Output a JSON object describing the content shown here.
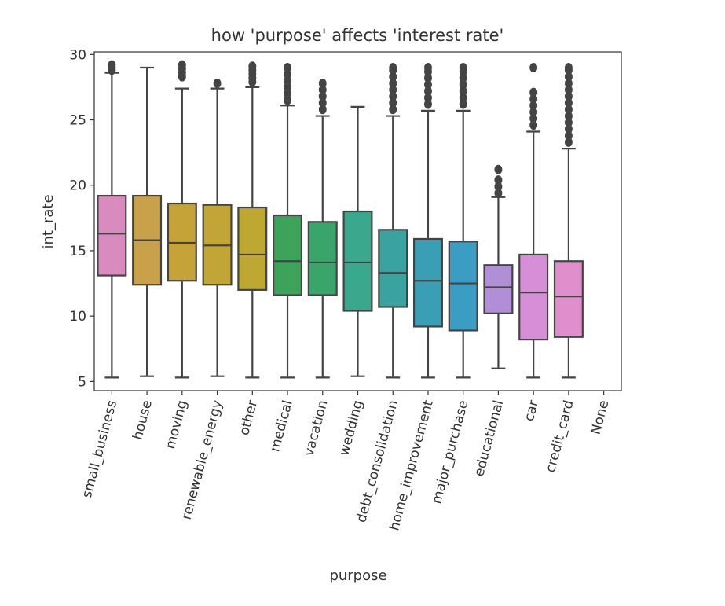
{
  "chart_data": {
    "type": "box",
    "title": "how 'purpose' affects 'interest rate'",
    "xlabel": "purpose",
    "ylabel": "int_rate",
    "ylim": [
      4.3,
      30.2
    ],
    "yticks": [
      5,
      10,
      15,
      20,
      25,
      30
    ],
    "grid": false,
    "legend": "none",
    "categories": [
      "small_business",
      "house",
      "moving",
      "renewable_energy",
      "other",
      "medical",
      "vacation",
      "wedding",
      "debt_consolidation",
      "home_improvement",
      "major_purchase",
      "educational",
      "car",
      "credit_card",
      "None"
    ],
    "boxes": [
      {
        "category": "small_business",
        "whisker_low": 5.3,
        "q1": 13.1,
        "median": 16.3,
        "q3": 19.2,
        "whisker_high": 28.6,
        "outliers": [
          28.8,
          29.0,
          29.2
        ],
        "color": "#d98bc0"
      },
      {
        "category": "house",
        "whisker_low": 5.4,
        "q1": 12.4,
        "median": 15.8,
        "q3": 19.2,
        "whisker_high": 29.0,
        "outliers": [],
        "color": "#c9a14a"
      },
      {
        "category": "moving",
        "whisker_low": 5.3,
        "q1": 12.7,
        "median": 15.6,
        "q3": 18.6,
        "whisker_high": 27.4,
        "outliers": [
          28.3,
          28.6,
          28.9,
          29.2
        ],
        "color": "#c6a339"
      },
      {
        "category": "renewable_energy",
        "whisker_low": 5.4,
        "q1": 12.4,
        "median": 15.4,
        "q3": 18.5,
        "whisker_high": 27.4,
        "outliers": [
          27.8
        ],
        "color": "#c2a537"
      },
      {
        "category": "other",
        "whisker_low": 5.3,
        "q1": 12.0,
        "median": 14.7,
        "q3": 18.3,
        "whisker_high": 27.5,
        "outliers": [
          27.9,
          28.2,
          28.5,
          28.8,
          29.1
        ],
        "color": "#bfa832"
      },
      {
        "category": "medical",
        "whisker_low": 5.3,
        "q1": 11.6,
        "median": 14.2,
        "q3": 17.7,
        "whisker_high": 26.1,
        "outliers": [
          26.5,
          27.0,
          27.5,
          28.0,
          28.5,
          29.0
        ],
        "color": "#3ea35a"
      },
      {
        "category": "vacation",
        "whisker_low": 5.3,
        "q1": 11.6,
        "median": 14.1,
        "q3": 17.2,
        "whisker_high": 25.3,
        "outliers": [
          25.8,
          26.3,
          26.8,
          27.3,
          27.8
        ],
        "color": "#3aa56a"
      },
      {
        "category": "wedding",
        "whisker_low": 5.4,
        "q1": 10.4,
        "median": 14.1,
        "q3": 18.0,
        "whisker_high": 26.0,
        "outliers": [],
        "color": "#3aa88c"
      },
      {
        "category": "debt_consolidation",
        "whisker_low": 5.3,
        "q1": 10.7,
        "median": 13.3,
        "q3": 16.6,
        "whisker_high": 25.3,
        "outliers": [
          25.8,
          26.3,
          26.8,
          27.3,
          27.8,
          28.3,
          28.8,
          29.0
        ],
        "color": "#3aa3a0"
      },
      {
        "category": "home_improvement",
        "whisker_low": 5.3,
        "q1": 9.2,
        "median": 12.7,
        "q3": 15.9,
        "whisker_high": 25.7,
        "outliers": [
          26.2,
          26.7,
          27.2,
          27.7,
          28.2,
          28.7,
          29.0
        ],
        "color": "#3a9fb5"
      },
      {
        "category": "major_purchase",
        "whisker_low": 5.3,
        "q1": 8.9,
        "median": 12.5,
        "q3": 15.7,
        "whisker_high": 25.7,
        "outliers": [
          26.2,
          26.7,
          27.2,
          27.7,
          28.2,
          28.7,
          29.0
        ],
        "color": "#3b9cc4"
      },
      {
        "category": "educational",
        "whisker_low": 6.0,
        "q1": 10.2,
        "median": 12.2,
        "q3": 13.9,
        "whisker_high": 19.1,
        "outliers": [
          19.4,
          19.9,
          20.4,
          21.2
        ],
        "color": "#b08fd6"
      },
      {
        "category": "car",
        "whisker_low": 5.3,
        "q1": 8.2,
        "median": 11.8,
        "q3": 14.7,
        "whisker_high": 24.1,
        "outliers": [
          24.6,
          25.1,
          25.6,
          26.1,
          26.6,
          27.1,
          29.0
        ],
        "color": "#d68fd6"
      },
      {
        "category": "credit_card",
        "whisker_low": 5.3,
        "q1": 8.4,
        "median": 11.5,
        "q3": 14.2,
        "whisker_high": 22.8,
        "outliers": [
          23.3,
          23.8,
          24.3,
          24.8,
          25.3,
          25.8,
          26.3,
          26.8,
          27.3,
          27.8,
          28.3,
          28.8,
          29.0
        ],
        "color": "#e08fcc"
      },
      {
        "category": "None",
        "whisker_low": null,
        "q1": null,
        "median": null,
        "q3": null,
        "whisker_high": null,
        "outliers": [],
        "color": "#f0a0c8"
      }
    ]
  }
}
